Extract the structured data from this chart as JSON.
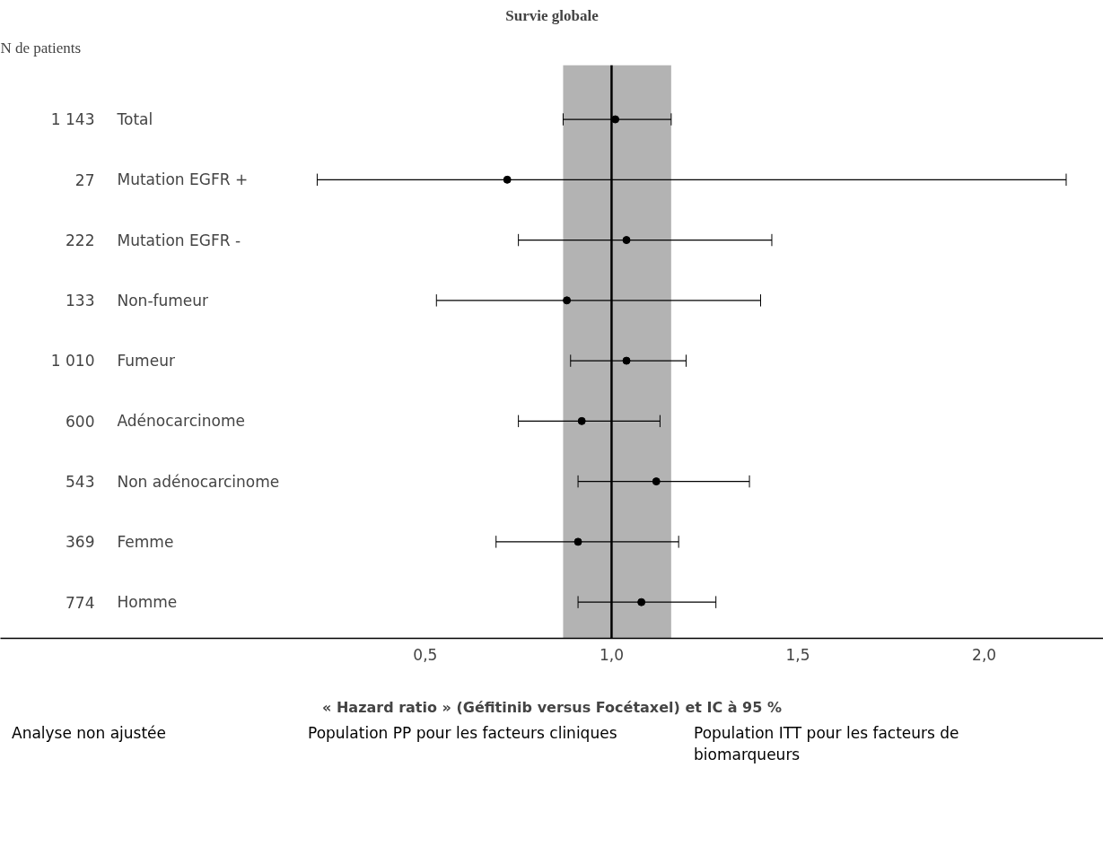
{
  "chart_data": {
    "type": "scatter",
    "orientation": "horizontal",
    "title": "Survie globale",
    "ylabel": "N de patients",
    "xlabel": "« Hazard ratio » (Géfitinib versus Focétaxel) et IC à 95 %",
    "categories": [
      "Total",
      "Mutation EGFR +",
      "Mutation EGFR -",
      "Non-fumeur",
      "Fumeur",
      "Adénocarcinome",
      "Non adénocarcinome",
      "Femme",
      "Homme"
    ],
    "y2_categories": [
      "1 143",
      "27",
      "222",
      "133",
      "1 010",
      "600",
      "543",
      "369",
      "774"
    ],
    "values": [
      1.01,
      0.72,
      1.04,
      0.88,
      1.04,
      0.92,
      1.12,
      0.91,
      1.08
    ],
    "errors": [
      [
        0.87,
        1.16
      ],
      [
        0.21,
        2.22
      ],
      [
        0.75,
        1.43
      ],
      [
        0.53,
        1.4
      ],
      [
        0.89,
        1.2
      ],
      [
        0.75,
        1.13
      ],
      [
        0.91,
        1.37
      ],
      [
        0.69,
        1.18
      ],
      [
        0.91,
        1.28
      ]
    ],
    "color": "#000000",
    "marker": "circle",
    "xlim": [
      -0.64,
      2.32
    ],
    "xticks": [
      {
        "value": 0.5,
        "label": "0,5"
      },
      {
        "value": 1.0,
        "label": "1,0"
      },
      {
        "value": 1.5,
        "label": "1,5"
      },
      {
        "value": 2.0,
        "label": "2,0"
      }
    ],
    "ref_lines": [
      {
        "axis": "x",
        "value": 1.0,
        "color": "#000000"
      }
    ],
    "bands": [
      {
        "axis": "x",
        "from": 0.87,
        "to": 1.16,
        "color": "#b3b3b3"
      }
    ],
    "grid": false,
    "annotations": [
      "Analyse non ajustée",
      "Population PP pour les facteurs cliniques",
      "Population ITT pour les facteurs de biomarqueurs"
    ]
  }
}
